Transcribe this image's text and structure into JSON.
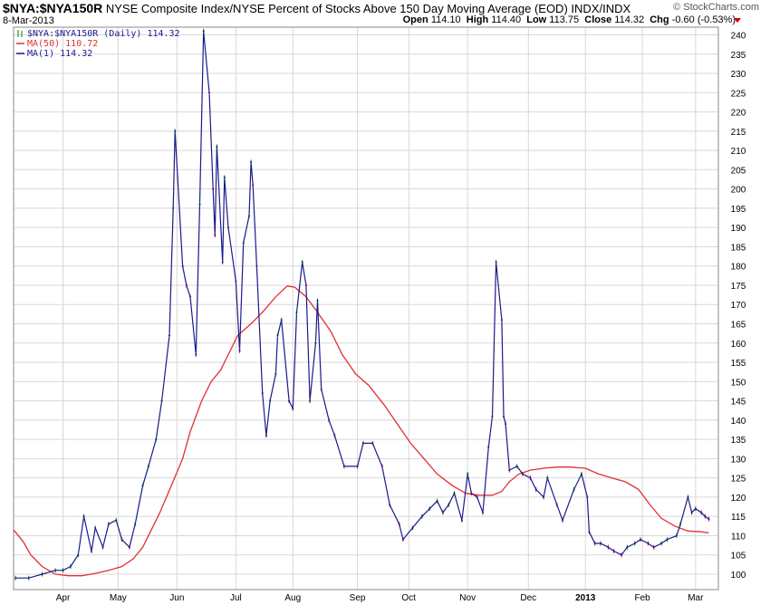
{
  "header": {
    "symbol": "$NYA:$NYA150R",
    "description": "NYSE Composite Index/NYSE Percent of Stocks Above 150 Day Moving Average (EOD)",
    "exchange": "INDX/INDX",
    "date": "8-Mar-2013",
    "brand": "© StockCharts.com",
    "ohlc": {
      "open_label": "Open",
      "open": "114.10",
      "high_label": "High",
      "high": "114.40",
      "low_label": "Low",
      "low": "113.75",
      "close_label": "Close",
      "close": "114.32",
      "chg_label": "Chg",
      "chg": "-0.60 (-0.53%)"
    }
  },
  "colors": {
    "price_line": "#1a1a8c",
    "ma50": "#e03030",
    "up_tick": "#008000",
    "down_tick": "#cc0066",
    "grid": "#d8d8d8",
    "frame": "#888888"
  },
  "chart_data": {
    "type": "line",
    "title": "$NYA:$NYA150R",
    "legend": [
      {
        "label": "$NYA:$NYA150R (Daily) 114.32",
        "color": "#1a1a8c",
        "marker": "bars"
      },
      {
        "label": "MA(50) 110.72",
        "color": "#e03030"
      },
      {
        "label": "MA(1) 114.32",
        "color": "#1a1a8c"
      }
    ],
    "legend_position": "top-left",
    "grid": true,
    "y_axis": {
      "position": "right",
      "min": 96,
      "max": 242,
      "ticks": [
        100,
        105,
        110,
        115,
        120,
        125,
        130,
        135,
        140,
        145,
        150,
        155,
        160,
        165,
        170,
        175,
        180,
        185,
        190,
        195,
        200,
        205,
        210,
        215,
        220,
        225,
        230,
        235,
        240
      ]
    },
    "x_axis": {
      "ticks": [
        {
          "label": "Apr",
          "x": "2012-04-02"
        },
        {
          "label": "May",
          "x": "2012-05-01"
        },
        {
          "label": "Jun",
          "x": "2012-06-01"
        },
        {
          "label": "Jul",
          "x": "2012-07-02"
        },
        {
          "label": "Aug",
          "x": "2012-08-01"
        },
        {
          "label": "Sep",
          "x": "2012-09-04"
        },
        {
          "label": "Oct",
          "x": "2012-10-01"
        },
        {
          "label": "Nov",
          "x": "2012-11-01"
        },
        {
          "label": "Dec",
          "x": "2012-12-03"
        },
        {
          "label": "2013",
          "x": "2013-01-02",
          "bold": true
        },
        {
          "label": "Feb",
          "x": "2013-02-01"
        },
        {
          "label": "Mar",
          "x": "2013-03-01"
        }
      ],
      "min": "2012-03-07",
      "max": "2013-03-13"
    },
    "series": [
      {
        "name": "MA(1) 114.32",
        "points": [
          [
            "2012-03-08",
            99
          ],
          [
            "2012-03-15",
            99
          ],
          [
            "2012-03-22",
            100
          ],
          [
            "2012-03-29",
            101
          ],
          [
            "2012-04-02",
            101
          ],
          [
            "2012-04-06",
            102
          ],
          [
            "2012-04-10",
            105
          ],
          [
            "2012-04-13",
            115
          ],
          [
            "2012-04-17",
            106
          ],
          [
            "2012-04-19",
            112
          ],
          [
            "2012-04-23",
            107
          ],
          [
            "2012-04-26",
            113
          ],
          [
            "2012-04-30",
            114
          ],
          [
            "2012-05-03",
            109
          ],
          [
            "2012-05-07",
            107
          ],
          [
            "2012-05-10",
            113
          ],
          [
            "2012-05-14",
            123
          ],
          [
            "2012-05-17",
            128
          ],
          [
            "2012-05-21",
            135
          ],
          [
            "2012-05-24",
            145
          ],
          [
            "2012-05-28",
            162
          ],
          [
            "2012-05-30",
            195
          ],
          [
            "2012-05-31",
            215
          ],
          [
            "2012-06-04",
            180
          ],
          [
            "2012-06-06",
            175
          ],
          [
            "2012-06-08",
            172
          ],
          [
            "2012-06-11",
            157
          ],
          [
            "2012-06-13",
            196
          ],
          [
            "2012-06-15",
            241
          ],
          [
            "2012-06-18",
            225
          ],
          [
            "2012-06-20",
            200
          ],
          [
            "2012-06-21",
            188
          ],
          [
            "2012-06-22",
            211
          ],
          [
            "2012-06-25",
            181
          ],
          [
            "2012-06-26",
            203
          ],
          [
            "2012-06-28",
            190
          ],
          [
            "2012-07-02",
            176
          ],
          [
            "2012-07-04",
            158
          ],
          [
            "2012-07-06",
            186
          ],
          [
            "2012-07-09",
            193
          ],
          [
            "2012-07-10",
            207
          ],
          [
            "2012-07-11",
            201
          ],
          [
            "2012-07-13",
            180
          ],
          [
            "2012-07-16",
            147
          ],
          [
            "2012-07-18",
            136
          ],
          [
            "2012-07-20",
            145
          ],
          [
            "2012-07-23",
            152
          ],
          [
            "2012-07-24",
            162
          ],
          [
            "2012-07-26",
            166
          ],
          [
            "2012-07-30",
            145
          ],
          [
            "2012-08-01",
            143
          ],
          [
            "2012-08-03",
            168
          ],
          [
            "2012-08-06",
            181
          ],
          [
            "2012-08-08",
            175
          ],
          [
            "2012-08-10",
            145
          ],
          [
            "2012-08-13",
            160
          ],
          [
            "2012-08-14",
            171
          ],
          [
            "2012-08-16",
            148
          ],
          [
            "2012-08-20",
            140
          ],
          [
            "2012-08-23",
            136
          ],
          [
            "2012-08-28",
            128
          ],
          [
            "2012-09-04",
            128
          ],
          [
            "2012-09-07",
            134
          ],
          [
            "2012-09-12",
            134
          ],
          [
            "2012-09-17",
            128
          ],
          [
            "2012-09-21",
            118
          ],
          [
            "2012-09-26",
            113
          ],
          [
            "2012-09-28",
            109
          ],
          [
            "2012-10-03",
            112
          ],
          [
            "2012-10-08",
            115
          ],
          [
            "2012-10-12",
            117
          ],
          [
            "2012-10-16",
            119
          ],
          [
            "2012-10-19",
            116
          ],
          [
            "2012-10-22",
            118
          ],
          [
            "2012-10-25",
            121
          ],
          [
            "2012-10-29",
            114
          ],
          [
            "2012-11-01",
            126
          ],
          [
            "2012-11-03",
            121
          ],
          [
            "2012-11-06",
            120
          ],
          [
            "2012-11-09",
            116
          ],
          [
            "2012-11-12",
            133
          ],
          [
            "2012-11-14",
            141
          ],
          [
            "2012-11-16",
            181
          ],
          [
            "2012-11-19",
            166
          ],
          [
            "2012-11-20",
            141
          ],
          [
            "2012-11-21",
            139
          ],
          [
            "2012-11-23",
            127
          ],
          [
            "2012-11-27",
            128
          ],
          [
            "2012-11-30",
            126
          ],
          [
            "2012-12-04",
            125
          ],
          [
            "2012-12-07",
            122
          ],
          [
            "2012-12-11",
            120
          ],
          [
            "2012-12-13",
            125
          ],
          [
            "2012-12-18",
            118
          ],
          [
            "2012-12-21",
            114
          ],
          [
            "2012-12-27",
            122
          ],
          [
            "2012-12-31",
            126
          ],
          [
            "2013-01-03",
            120
          ],
          [
            "2013-01-04",
            111
          ],
          [
            "2013-01-07",
            108
          ],
          [
            "2013-01-10",
            108
          ],
          [
            "2013-01-14",
            107
          ],
          [
            "2013-01-17",
            106
          ],
          [
            "2013-01-21",
            105
          ],
          [
            "2013-01-24",
            107
          ],
          [
            "2013-01-28",
            108
          ],
          [
            "2013-01-31",
            109
          ],
          [
            "2013-02-04",
            108
          ],
          [
            "2013-02-07",
            107
          ],
          [
            "2013-02-11",
            108
          ],
          [
            "2013-02-14",
            109
          ],
          [
            "2013-02-19",
            110
          ],
          [
            "2013-02-21",
            113
          ],
          [
            "2013-02-25",
            120
          ],
          [
            "2013-02-27",
            116
          ],
          [
            "2013-03-01",
            117
          ],
          [
            "2013-03-04",
            116
          ],
          [
            "2013-03-06",
            115
          ],
          [
            "2013-03-08",
            114.32
          ]
        ]
      },
      {
        "name": "MA(50) 110.72",
        "points": [
          [
            "2012-03-07",
            111.5
          ],
          [
            "2012-03-12",
            108.5
          ],
          [
            "2012-03-16",
            105
          ],
          [
            "2012-03-22",
            102
          ],
          [
            "2012-03-29",
            100
          ],
          [
            "2012-04-05",
            99.6
          ],
          [
            "2012-04-12",
            99.6
          ],
          [
            "2012-04-19",
            100.2
          ],
          [
            "2012-04-26",
            101
          ],
          [
            "2012-05-03",
            102
          ],
          [
            "2012-05-09",
            104
          ],
          [
            "2012-05-14",
            107
          ],
          [
            "2012-05-18",
            111
          ],
          [
            "2012-05-23",
            116
          ],
          [
            "2012-05-29",
            123
          ],
          [
            "2012-06-04",
            130
          ],
          [
            "2012-06-08",
            137
          ],
          [
            "2012-06-14",
            145
          ],
          [
            "2012-06-19",
            150
          ],
          [
            "2012-06-24",
            153
          ],
          [
            "2012-06-28",
            157
          ],
          [
            "2012-07-03",
            162
          ],
          [
            "2012-07-10",
            165
          ],
          [
            "2012-07-16",
            168
          ],
          [
            "2012-07-23",
            172
          ],
          [
            "2012-07-29",
            174.8
          ],
          [
            "2012-08-02",
            174.5
          ],
          [
            "2012-08-08",
            172
          ],
          [
            "2012-08-14",
            168
          ],
          [
            "2012-08-21",
            163
          ],
          [
            "2012-08-27",
            157
          ],
          [
            "2012-09-03",
            152
          ],
          [
            "2012-09-10",
            149
          ],
          [
            "2012-09-18",
            144
          ],
          [
            "2012-09-25",
            139
          ],
          [
            "2012-10-02",
            134
          ],
          [
            "2012-10-09",
            130
          ],
          [
            "2012-10-16",
            126
          ],
          [
            "2012-10-24",
            123
          ],
          [
            "2012-10-31",
            121
          ],
          [
            "2012-11-07",
            120.5
          ],
          [
            "2012-11-14",
            120.5
          ],
          [
            "2012-11-19",
            121.5
          ],
          [
            "2012-11-23",
            124
          ],
          [
            "2012-11-28",
            126
          ],
          [
            "2012-12-04",
            127
          ],
          [
            "2012-12-11",
            127.5
          ],
          [
            "2012-12-18",
            127.8
          ],
          [
            "2012-12-25",
            127.8
          ],
          [
            "2013-01-02",
            127.5
          ],
          [
            "2013-01-09",
            126
          ],
          [
            "2013-01-16",
            125
          ],
          [
            "2013-01-23",
            124
          ],
          [
            "2013-01-30",
            122
          ],
          [
            "2013-02-05",
            118
          ],
          [
            "2013-02-11",
            114.5
          ],
          [
            "2013-02-18",
            112.5
          ],
          [
            "2013-02-25",
            111.2
          ],
          [
            "2013-03-04",
            111
          ],
          [
            "2013-03-08",
            110.72
          ]
        ]
      }
    ]
  }
}
